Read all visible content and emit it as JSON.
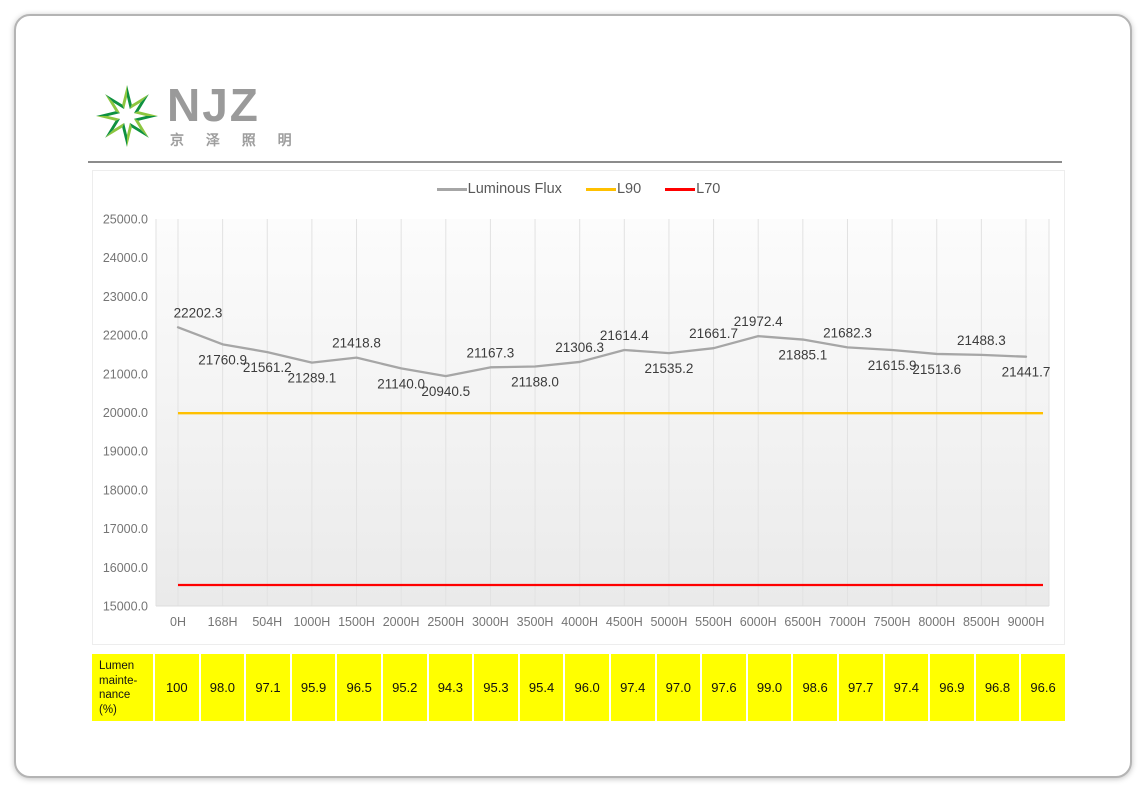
{
  "logo": {
    "brand": "NJZ",
    "subtitle": "京 泽 照 明",
    "star_colors": {
      "dark": "#0e9140",
      "light": "#8dc63f",
      "core": "#ffffff"
    }
  },
  "colors": {
    "line_gray": "#a6a6a6",
    "l90_yellow": "#ffc000",
    "l70_red": "#ff0000",
    "table_yellow": "#ffff00",
    "axis_text": "#757575",
    "data_label": "#3c3c3c"
  },
  "chart_data": {
    "type": "line",
    "title": "",
    "legend_position": "top",
    "grid": "vertical",
    "ylim": [
      15000,
      25000
    ],
    "y_tick_step": 1000,
    "x_categories": [
      "0H",
      "168H",
      "504H",
      "1000H",
      "1500H",
      "2000H",
      "2500H",
      "3000H",
      "3500H",
      "4000H",
      "4500H",
      "5000H",
      "5500H",
      "6000H",
      "6500H",
      "7000H",
      "7500H",
      "8000H",
      "8500H",
      "9000H"
    ],
    "series": [
      {
        "name": "Luminous Flux",
        "kind": "line",
        "color": "#a6a6a6",
        "values": [
          22202.3,
          21760.9,
          21561.2,
          21289.1,
          21418.8,
          21140.0,
          20940.5,
          21167.3,
          21188.0,
          21306.3,
          21614.4,
          21535.2,
          21661.7,
          21972.4,
          21885.1,
          21682.3,
          21615.9,
          21513.6,
          21488.3,
          21441.7
        ],
        "value_labels": [
          "22202.3",
          "21760.9",
          "21561.2",
          "21289.1",
          "21418.8",
          "21140.0",
          "20940.5",
          "21167.3",
          "21188.0",
          "21306.3",
          "21614.4",
          "21535.2",
          "21661.7",
          "21972.4",
          "21885.1",
          "21682.3",
          "21615.9",
          "21513.6",
          "21488.3",
          "21441.7"
        ],
        "label_positions": [
          "above",
          "below",
          "below",
          "below",
          "above",
          "below",
          "below",
          "above",
          "below",
          "above",
          "above",
          "below",
          "above",
          "above",
          "below",
          "above",
          "below",
          "below",
          "above",
          "below"
        ]
      },
      {
        "name": "L90",
        "kind": "refline",
        "color": "#ffc000",
        "value": 19982
      },
      {
        "name": "L70",
        "kind": "refline",
        "color": "#ff0000",
        "value": 15542
      }
    ]
  },
  "table": {
    "row_label_lines": [
      "Lumen",
      "mainte-",
      "nance",
      "(%)"
    ],
    "values": [
      "100",
      "98.0",
      "97.1",
      "95.9",
      "96.5",
      "95.2",
      "94.3",
      "95.3",
      "95.4",
      "96.0",
      "97.4",
      "97.0",
      "97.6",
      "99.0",
      "98.6",
      "97.7",
      "97.4",
      "96.9",
      "96.8",
      "96.6"
    ]
  }
}
